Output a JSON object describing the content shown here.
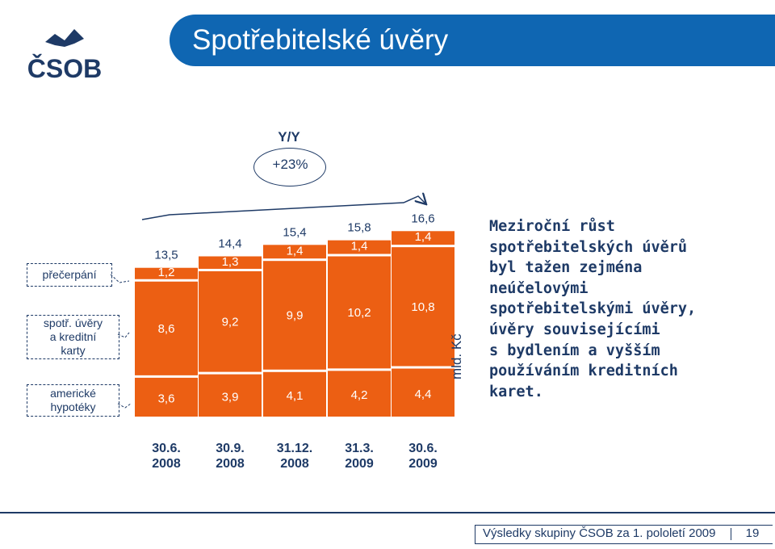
{
  "page": {
    "title": "Spotřebitelské úvěry",
    "logo_text": "ČSOB",
    "yy_label": "Y/Y",
    "yy_value": "+23%",
    "unit": "mld. Kč",
    "description": "Meziroční růst\nspotřebitelských úvěrů\nbyl tažen zejména\nneúčelovými\nspotřebitelskými úvěry,\núvěry souvisejícími\ns bydlením a vyšším\npoužíváním kreditních\nkaret.",
    "footer_text": "Výsledky skupiny ČSOB za 1. pololetí 2009",
    "page_number": "19",
    "legend": {
      "overdraft": "přečerpání",
      "consumer_line1": "spotř. úvěry",
      "consumer_line2": "a kreditní",
      "consumer_line3": "karty",
      "mortgage_line1": "americké",
      "mortgage_line2": "hypotéky"
    },
    "colors": {
      "brand_blue": "#0f66b2",
      "text_navy": "#1e3a66",
      "overdraft": "#ec5f13",
      "consumer": "#ec5f13",
      "mortgage": "#ec5f13"
    }
  },
  "chart_data": {
    "type": "bar",
    "stacked": true,
    "categories": [
      [
        "30.6.",
        "2008"
      ],
      [
        "30.9.",
        "2008"
      ],
      [
        "31.12.",
        "2008"
      ],
      [
        "31.3.",
        "2009"
      ],
      [
        "30.6.",
        "2009"
      ]
    ],
    "series": [
      {
        "name": "americké hypotéky",
        "values": [
          3.6,
          3.9,
          4.1,
          4.2,
          4.4
        ],
        "labels": [
          "3,6",
          "3,9",
          "4,1",
          "4,2",
          "4,4"
        ]
      },
      {
        "name": "spotř. úvěry a kreditní karty",
        "values": [
          8.6,
          9.2,
          9.9,
          10.2,
          10.8
        ],
        "labels": [
          "8,6",
          "9,2",
          "9,9",
          "10,2",
          "10,8"
        ]
      },
      {
        "name": "přečerpání",
        "values": [
          1.2,
          1.3,
          1.4,
          1.4,
          1.4
        ],
        "labels": [
          "1,2",
          "1,3",
          "1,4",
          "1,4",
          "1,4"
        ]
      }
    ],
    "totals": [
      13.5,
      14.4,
      15.4,
      15.8,
      16.6
    ],
    "total_labels": [
      "13,5",
      "14,4",
      "15,4",
      "15,8",
      "16,6"
    ],
    "ylabel": "mld. Kč",
    "ylim": [
      0,
      16.6
    ],
    "grid": false
  }
}
